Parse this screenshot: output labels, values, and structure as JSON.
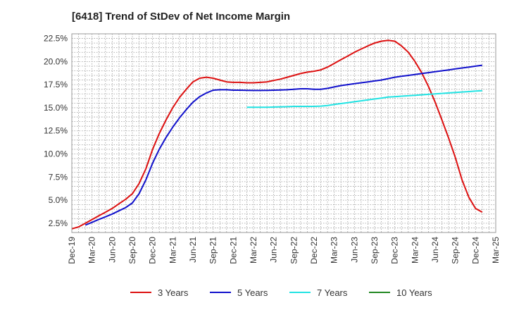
{
  "chart_data": {
    "type": "line",
    "title": "[6418]  Trend of StDev of Net Income Margin",
    "xlabel": "",
    "ylabel": "",
    "ylim": [
      1.5,
      23.0
    ],
    "yticks": [
      2.5,
      5.0,
      7.5,
      10.0,
      12.5,
      15.0,
      17.5,
      20.0,
      22.5
    ],
    "ytick_labels": [
      "2.5%",
      "5.0%",
      "7.5%",
      "10.0%",
      "12.5%",
      "15.0%",
      "17.5%",
      "20.0%",
      "22.5%"
    ],
    "x_categories": [
      "Dec-19",
      "Mar-20",
      "Jun-20",
      "Sep-20",
      "Dec-20",
      "Mar-21",
      "Jun-21",
      "Sep-21",
      "Dec-21",
      "Mar-22",
      "Jun-22",
      "Sep-22",
      "Dec-22",
      "Mar-23",
      "Jun-23",
      "Sep-23",
      "Dec-23",
      "Mar-24",
      "Jun-24",
      "Sep-24",
      "Dec-24",
      "Mar-25"
    ],
    "grid": true,
    "legend_position": "bottom",
    "series": [
      {
        "name": "3 Years",
        "color": "#dd1111",
        "values": [
          [
            0,
            1.9
          ],
          [
            0.33,
            2.1
          ],
          [
            0.67,
            2.5
          ],
          [
            1,
            2.9
          ],
          [
            1.33,
            3.3
          ],
          [
            1.67,
            3.7
          ],
          [
            2,
            4.1
          ],
          [
            2.33,
            4.6
          ],
          [
            2.67,
            5.1
          ],
          [
            3,
            5.7
          ],
          [
            3.33,
            6.8
          ],
          [
            3.67,
            8.4
          ],
          [
            4,
            10.5
          ],
          [
            4.33,
            12.2
          ],
          [
            4.67,
            13.7
          ],
          [
            5,
            15.0
          ],
          [
            5.33,
            16.1
          ],
          [
            5.67,
            17.0
          ],
          [
            6,
            17.8
          ],
          [
            6.33,
            18.2
          ],
          [
            6.67,
            18.3
          ],
          [
            7,
            18.2
          ],
          [
            7.33,
            18.0
          ],
          [
            7.67,
            17.8
          ],
          [
            8,
            17.75
          ],
          [
            8.33,
            17.75
          ],
          [
            8.67,
            17.7
          ],
          [
            9,
            17.7
          ],
          [
            9.33,
            17.75
          ],
          [
            9.67,
            17.8
          ],
          [
            10,
            17.95
          ],
          [
            10.33,
            18.1
          ],
          [
            10.67,
            18.3
          ],
          [
            11,
            18.5
          ],
          [
            11.33,
            18.7
          ],
          [
            11.67,
            18.85
          ],
          [
            12,
            18.95
          ],
          [
            12.33,
            19.1
          ],
          [
            12.67,
            19.4
          ],
          [
            13,
            19.8
          ],
          [
            13.33,
            20.2
          ],
          [
            13.67,
            20.6
          ],
          [
            14,
            21.0
          ],
          [
            14.33,
            21.35
          ],
          [
            14.67,
            21.7
          ],
          [
            15,
            22.0
          ],
          [
            15.33,
            22.2
          ],
          [
            15.67,
            22.3
          ],
          [
            16,
            22.2
          ],
          [
            16.33,
            21.7
          ],
          [
            16.67,
            21.0
          ],
          [
            17,
            20.0
          ],
          [
            17.33,
            18.8
          ],
          [
            17.67,
            17.3
          ],
          [
            18,
            15.6
          ],
          [
            18.33,
            13.7
          ],
          [
            18.67,
            11.7
          ],
          [
            19,
            9.6
          ],
          [
            19.33,
            7.2
          ],
          [
            19.67,
            5.3
          ],
          [
            20,
            4.1
          ],
          [
            20.33,
            3.7
          ]
        ]
      },
      {
        "name": "5 Years",
        "color": "#1111cc",
        "values": [
          [
            0.67,
            2.3
          ],
          [
            1,
            2.6
          ],
          [
            1.33,
            2.9
          ],
          [
            1.67,
            3.2
          ],
          [
            2,
            3.5
          ],
          [
            2.33,
            3.85
          ],
          [
            2.67,
            4.2
          ],
          [
            3,
            4.7
          ],
          [
            3.33,
            5.7
          ],
          [
            3.67,
            7.2
          ],
          [
            4,
            9.0
          ],
          [
            4.33,
            10.5
          ],
          [
            4.67,
            11.8
          ],
          [
            5,
            12.9
          ],
          [
            5.33,
            13.9
          ],
          [
            5.67,
            14.8
          ],
          [
            6,
            15.6
          ],
          [
            6.33,
            16.2
          ],
          [
            6.67,
            16.6
          ],
          [
            7,
            16.9
          ],
          [
            7.33,
            16.95
          ],
          [
            7.67,
            16.95
          ],
          [
            8,
            16.9
          ],
          [
            8.33,
            16.9
          ],
          [
            8.67,
            16.88
          ],
          [
            9,
            16.87
          ],
          [
            9.33,
            16.87
          ],
          [
            9.67,
            16.88
          ],
          [
            10,
            16.9
          ],
          [
            10.33,
            16.92
          ],
          [
            10.67,
            16.95
          ],
          [
            11,
            17.0
          ],
          [
            11.33,
            17.05
          ],
          [
            11.67,
            17.05
          ],
          [
            12,
            17.0
          ],
          [
            12.33,
            17.0
          ],
          [
            12.67,
            17.1
          ],
          [
            13,
            17.25
          ],
          [
            13.33,
            17.4
          ],
          [
            13.67,
            17.5
          ],
          [
            14,
            17.6
          ],
          [
            14.33,
            17.7
          ],
          [
            14.67,
            17.8
          ],
          [
            15,
            17.9
          ],
          [
            15.33,
            18.0
          ],
          [
            15.67,
            18.15
          ],
          [
            16,
            18.3
          ],
          [
            16.33,
            18.4
          ],
          [
            16.67,
            18.5
          ],
          [
            17,
            18.6
          ],
          [
            17.33,
            18.7
          ],
          [
            17.67,
            18.8
          ],
          [
            18,
            18.9
          ],
          [
            18.33,
            19.0
          ],
          [
            18.67,
            19.1
          ],
          [
            19,
            19.2
          ],
          [
            19.33,
            19.3
          ],
          [
            19.67,
            19.4
          ],
          [
            20,
            19.5
          ],
          [
            20.33,
            19.6
          ]
        ]
      },
      {
        "name": "7 Years",
        "color": "#22e3e3",
        "values": [
          [
            8.67,
            15.05
          ],
          [
            9,
            15.05
          ],
          [
            9.33,
            15.05
          ],
          [
            9.67,
            15.05
          ],
          [
            10,
            15.08
          ],
          [
            10.33,
            15.1
          ],
          [
            10.67,
            15.12
          ],
          [
            11,
            15.15
          ],
          [
            11.33,
            15.15
          ],
          [
            11.67,
            15.15
          ],
          [
            12,
            15.15
          ],
          [
            12.33,
            15.18
          ],
          [
            12.67,
            15.25
          ],
          [
            13,
            15.35
          ],
          [
            13.33,
            15.45
          ],
          [
            13.67,
            15.55
          ],
          [
            14,
            15.65
          ],
          [
            14.33,
            15.75
          ],
          [
            14.67,
            15.85
          ],
          [
            15,
            15.95
          ],
          [
            15.33,
            16.05
          ],
          [
            15.67,
            16.15
          ],
          [
            16,
            16.2
          ],
          [
            16.33,
            16.25
          ],
          [
            16.67,
            16.3
          ],
          [
            17,
            16.35
          ],
          [
            17.33,
            16.4
          ],
          [
            17.67,
            16.45
          ],
          [
            18,
            16.5
          ],
          [
            18.33,
            16.55
          ],
          [
            18.67,
            16.6
          ],
          [
            19,
            16.65
          ],
          [
            19.33,
            16.7
          ],
          [
            19.67,
            16.75
          ],
          [
            20,
            16.8
          ],
          [
            20.33,
            16.85
          ]
        ]
      },
      {
        "name": "10 Years",
        "color": "#228822",
        "values": []
      }
    ]
  }
}
